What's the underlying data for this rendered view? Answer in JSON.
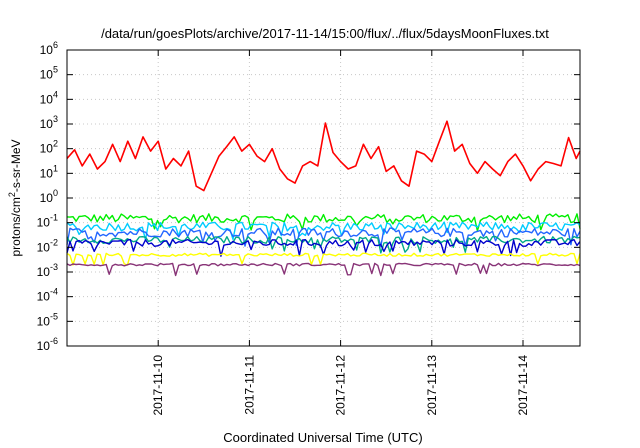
{
  "chart_data": {
    "type": "line",
    "title": "/data/run/goesPlots/archive/2017-11-14/15:00/flux/../flux/5daysMoonFluxes.txt",
    "xlabel": "Coordinated Universal Time (UTC)",
    "ylabel": {
      "base": "protons/cm",
      "sup": "2",
      "rest": "-s-sr-MeV"
    },
    "yscale": "log",
    "ylim": [
      1e-06,
      1000000.0
    ],
    "y_ticks": [
      {
        "exp": "-6",
        "value": 1e-06
      },
      {
        "exp": "-5",
        "value": 1e-05
      },
      {
        "exp": "-4",
        "value": 0.0001
      },
      {
        "exp": "-3",
        "value": 0.001
      },
      {
        "exp": "-2",
        "value": 0.01
      },
      {
        "exp": "-1",
        "value": 0.1
      },
      {
        "exp": "0",
        "value": 1
      },
      {
        "exp": "1",
        "value": 10
      },
      {
        "exp": "2",
        "value": 100
      },
      {
        "exp": "3",
        "value": 1000
      },
      {
        "exp": "4",
        "value": 10000
      },
      {
        "exp": "5",
        "value": 100000
      },
      {
        "exp": "6",
        "value": 1000000
      }
    ],
    "y_tick_base": "10",
    "xlim": [
      "2017-11-09T00:00",
      "2017-11-14T15:00"
    ],
    "x_ticks": [
      {
        "label": "2017-11-10",
        "time": "2017-11-10T00:00"
      },
      {
        "label": "2017-11-11",
        "time": "2017-11-11T00:00"
      },
      {
        "label": "2017-11-12",
        "time": "2017-11-12T00:00"
      },
      {
        "label": "2017-11-13",
        "time": "2017-11-13T00:00"
      },
      {
        "label": "2017-11-14",
        "time": "2017-11-14T00:00"
      }
    ],
    "grid": true,
    "legend": "none",
    "series": [
      {
        "color": "#ff0000",
        "values": [
          [
            "2017-11-09T00:00",
            40
          ],
          [
            "2017-11-09T02:00",
            90
          ],
          [
            "2017-11-09T04:00",
            20
          ],
          [
            "2017-11-09T06:00",
            60
          ],
          [
            "2017-11-09T08:00",
            15
          ],
          [
            "2017-11-09T10:00",
            30
          ],
          [
            "2017-11-09T12:00",
            150
          ],
          [
            "2017-11-09T14:00",
            30
          ],
          [
            "2017-11-09T16:00",
            200
          ],
          [
            "2017-11-09T18:00",
            40
          ],
          [
            "2017-11-09T20:00",
            300
          ],
          [
            "2017-11-09T22:00",
            80
          ],
          [
            "2017-11-10T00:00",
            200
          ],
          [
            "2017-11-10T02:00",
            15
          ],
          [
            "2017-11-10T04:00",
            40
          ],
          [
            "2017-11-10T06:00",
            20
          ],
          [
            "2017-11-10T08:00",
            80
          ],
          [
            "2017-11-10T10:00",
            3
          ],
          [
            "2017-11-10T12:00",
            2
          ],
          [
            "2017-11-10T14:00",
            10
          ],
          [
            "2017-11-10T16:00",
            50
          ],
          [
            "2017-11-10T18:00",
            120
          ],
          [
            "2017-11-10T20:00",
            300
          ],
          [
            "2017-11-10T22:00",
            80
          ],
          [
            "2017-11-11T00:00",
            150
          ],
          [
            "2017-11-11T02:00",
            50
          ],
          [
            "2017-11-11T04:00",
            30
          ],
          [
            "2017-11-11T06:00",
            100
          ],
          [
            "2017-11-11T08:00",
            15
          ],
          [
            "2017-11-11T10:00",
            6
          ],
          [
            "2017-11-11T12:00",
            4
          ],
          [
            "2017-11-11T14:00",
            20
          ],
          [
            "2017-11-11T16:00",
            30
          ],
          [
            "2017-11-11T18:00",
            20
          ],
          [
            "2017-11-11T20:00",
            1100
          ],
          [
            "2017-11-11T22:00",
            70
          ],
          [
            "2017-11-12T00:00",
            30
          ],
          [
            "2017-11-12T02:00",
            15
          ],
          [
            "2017-11-12T04:00",
            20
          ],
          [
            "2017-11-12T06:00",
            150
          ],
          [
            "2017-11-12T08:00",
            40
          ],
          [
            "2017-11-12T10:00",
            120
          ],
          [
            "2017-11-12T12:00",
            12
          ],
          [
            "2017-11-12T14:00",
            20
          ],
          [
            "2017-11-12T16:00",
            5
          ],
          [
            "2017-11-12T18:00",
            3
          ],
          [
            "2017-11-12T20:00",
            80
          ],
          [
            "2017-11-12T22:00",
            60
          ],
          [
            "2017-11-13T00:00",
            30
          ],
          [
            "2017-11-13T02:00",
            200
          ],
          [
            "2017-11-13T04:00",
            1300
          ],
          [
            "2017-11-13T06:00",
            80
          ],
          [
            "2017-11-13T08:00",
            150
          ],
          [
            "2017-11-13T10:00",
            25
          ],
          [
            "2017-11-13T12:00",
            10
          ],
          [
            "2017-11-13T14:00",
            30
          ],
          [
            "2017-11-13T16:00",
            15
          ],
          [
            "2017-11-13T18:00",
            8
          ],
          [
            "2017-11-13T20:00",
            30
          ],
          [
            "2017-11-13T22:00",
            60
          ],
          [
            "2017-11-14T00:00",
            20
          ],
          [
            "2017-11-14T02:00",
            5
          ],
          [
            "2017-11-14T04:00",
            15
          ],
          [
            "2017-11-14T06:00",
            30
          ],
          [
            "2017-11-14T08:00",
            25
          ],
          [
            "2017-11-14T10:00",
            20
          ],
          [
            "2017-11-14T12:00",
            280
          ],
          [
            "2017-11-14T14:00",
            40
          ],
          [
            "2017-11-14T15:00",
            80
          ]
        ]
      },
      {
        "color": "#00ee00",
        "level": 0.15,
        "spread": 0.18
      },
      {
        "color": "#00ccff",
        "level": 0.07,
        "spread": 0.18
      },
      {
        "color": "#2266ff",
        "level": 0.04,
        "spread": 0.18
      },
      {
        "color": "#00aa88",
        "level": 0.02,
        "spread": 0.14
      },
      {
        "color": "#0000cc",
        "level": 0.015,
        "spread": 0.14
      },
      {
        "color": "#ffff00",
        "level": 0.005,
        "spread": 0.06
      },
      {
        "color": "#883377",
        "level": 0.002,
        "spread": 0.05
      }
    ]
  }
}
